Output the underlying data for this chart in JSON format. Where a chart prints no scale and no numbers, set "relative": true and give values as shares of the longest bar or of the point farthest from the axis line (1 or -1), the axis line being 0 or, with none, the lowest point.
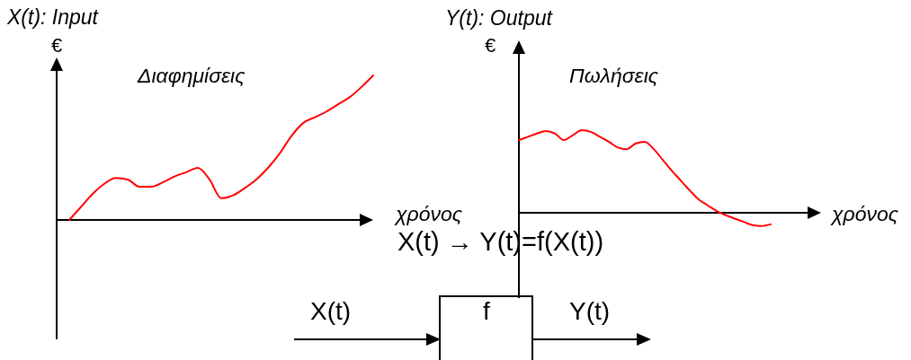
{
  "chart_data": [
    {
      "type": "line",
      "title": "X(t): Input",
      "ylabel": "€",
      "xlabel": "χρόνος",
      "relative": true,
      "categories": [
        null,
        null,
        null,
        null,
        null,
        null,
        null,
        null,
        null,
        null,
        null,
        null,
        null,
        null,
        null,
        null,
        null,
        null,
        null,
        null,
        null,
        null,
        null,
        null,
        null,
        null,
        null
      ],
      "series": [
        {
          "name": "Διαφημίσεις",
          "color": "#ff0000",
          "values": [
            0,
            0.09,
            0.18,
            0.25,
            0.29,
            0.28,
            0.23,
            0.23,
            0.26,
            0.3,
            0.33,
            0.36,
            0.28,
            0.15,
            0.17,
            0.22,
            0.28,
            0.36,
            0.46,
            0.58,
            0.67,
            0.71,
            0.75,
            0.8,
            0.85,
            0.92,
            1
          ]
        }
      ]
    },
    {
      "type": "line",
      "title": "Y(t): Output",
      "ylabel": "€",
      "xlabel": "χρόνος",
      "relative": true,
      "categories": [
        null,
        null,
        null,
        null,
        null,
        null,
        null,
        null,
        null,
        null,
        null,
        null,
        null,
        null,
        null,
        null,
        null,
        null,
        null,
        null,
        null,
        null,
        null,
        null,
        null,
        null,
        null,
        null,
        null
      ],
      "series": [
        {
          "name": "Πωλήσεις",
          "color": "#ff0000",
          "values": [
            0.88,
            0.92,
            0.96,
            0.99,
            0.96,
            0.88,
            0.94,
            1,
            0.98,
            0.92,
            0.86,
            0.79,
            0.77,
            0.84,
            0.86,
            0.77,
            0.64,
            0.51,
            0.39,
            0.27,
            0.16,
            0.09,
            0.02,
            -0.03,
            -0.07,
            -0.11,
            -0.15,
            -0.16,
            -0.14
          ]
        }
      ]
    },
    {
      "type": "other",
      "annotations": [
        "X(t) → Y(t)=f(X(t))",
        "X(t)",
        "f",
        "Y(t)"
      ]
    }
  ]
}
